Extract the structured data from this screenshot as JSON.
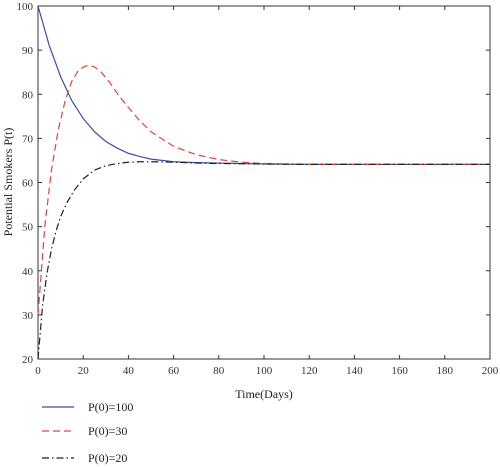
{
  "chart_data": {
    "type": "line",
    "title": "",
    "xlabel": "Time(Days)",
    "ylabel": "Potential Smokers P(t)",
    "xlim": [
      0,
      200
    ],
    "ylim": [
      20,
      100
    ],
    "x_ticks": [
      "0",
      "20",
      "40",
      "60",
      "80",
      "100",
      "120",
      "140",
      "160",
      "180",
      "200"
    ],
    "y_ticks": [
      "20",
      "30",
      "40",
      "50",
      "60",
      "70",
      "80",
      "90",
      "100"
    ],
    "grid": false,
    "legend_position": "bottom-left",
    "series": [
      {
        "name": "P(0)=100",
        "color": "#3a4fa8",
        "dash": "solid",
        "x": [
          0,
          5,
          10,
          15,
          20,
          25,
          30,
          35,
          40,
          45,
          50,
          60,
          70,
          80,
          90,
          100,
          120,
          140,
          160,
          180,
          200
        ],
        "y": [
          100,
          91,
          84,
          78.5,
          74.5,
          71.5,
          69.3,
          67.8,
          66.6,
          65.9,
          65.3,
          64.7,
          64.5,
          64.4,
          64.3,
          64.2,
          64.1,
          64.1,
          64.1,
          64.1,
          64.1
        ]
      },
      {
        "name": "P(0)=30",
        "color": "#e0443e",
        "dash": "dashed",
        "x": [
          0,
          3,
          6,
          9,
          12,
          15,
          18,
          21,
          23,
          25,
          28,
          32,
          36,
          40,
          45,
          50,
          60,
          70,
          80,
          90,
          100,
          120,
          140,
          160,
          180,
          200
        ],
        "y": [
          30,
          50,
          63,
          72,
          78.5,
          83,
          85.5,
          86.4,
          86.5,
          86.2,
          85,
          82.5,
          79.5,
          77,
          74,
          71.5,
          68.2,
          66.3,
          65.2,
          64.6,
          64.3,
          64.1,
          64.1,
          64.1,
          64.1,
          64.1
        ]
      },
      {
        "name": "P(0)=20",
        "color": "#222222",
        "dash": "dashdot",
        "x": [
          0,
          2,
          4,
          6,
          8,
          10,
          13,
          16,
          20,
          25,
          30,
          35,
          40,
          45,
          50,
          60,
          70,
          80,
          100,
          120,
          140,
          160,
          180,
          200
        ],
        "y": [
          20,
          32,
          39.5,
          45,
          49,
          52.3,
          55.6,
          58.2,
          60.8,
          62.8,
          63.8,
          64.3,
          64.6,
          64.7,
          64.7,
          64.6,
          64.4,
          64.3,
          64.2,
          64.1,
          64.1,
          64.1,
          64.1,
          64.1
        ]
      }
    ]
  }
}
